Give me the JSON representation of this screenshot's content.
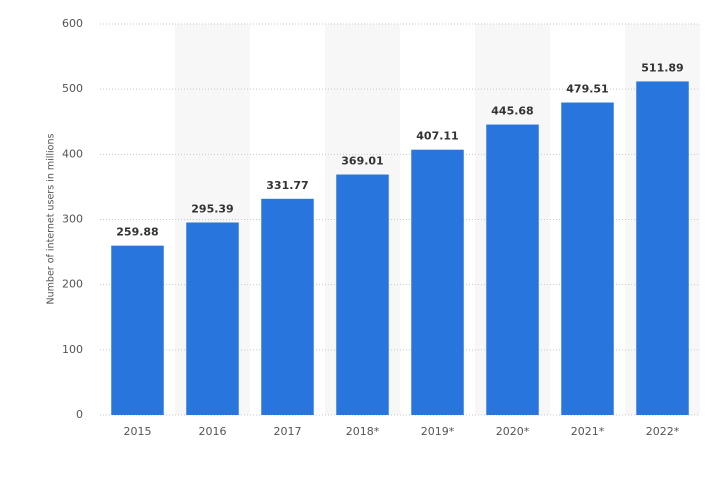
{
  "chart_data": {
    "type": "bar",
    "y_label": "Number of internet users in millions",
    "categories": [
      "2015",
      "2016",
      "2017",
      "2018*",
      "2019*",
      "2020*",
      "2021*",
      "2022*"
    ],
    "values": [
      259.88,
      295.39,
      331.77,
      369.01,
      407.11,
      445.68,
      479.51,
      511.89
    ],
    "color": "#2876dd",
    "ylim": [
      0,
      600
    ],
    "yticks": [
      0,
      100,
      200,
      300,
      400,
      500,
      600
    ],
    "grid": true
  }
}
